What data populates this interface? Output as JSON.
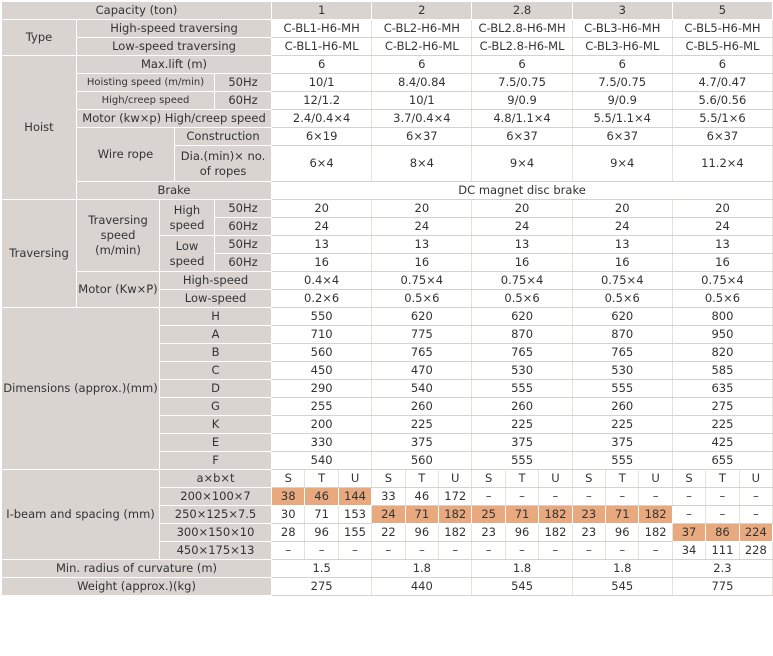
{
  "header": {
    "label": "Capacity (ton)",
    "caps": [
      "1",
      "2",
      "2.8",
      "3",
      "5"
    ]
  },
  "type": {
    "label": "Type",
    "hs_label": "High-speed traversing",
    "ls_label": "Low-speed traversing",
    "hs": [
      "C-BL1-H6-MH",
      "C-BL2-H6-MH",
      "C-BL2.8-H6-MH",
      "C-BL3-H6-MH",
      "C-BL5-H6-MH"
    ],
    "ls": [
      "C-BL1-H6-ML",
      "C-BL2-H6-ML",
      "C-BL2.8-H6-ML",
      "C-BL3-H6-ML",
      "C-BL5-H6-ML"
    ]
  },
  "hoist": {
    "label": "Hoist",
    "maxlift_label": "Max.lift (m)",
    "maxlift": [
      "6",
      "6",
      "6",
      "6",
      "6"
    ],
    "hs_label": "Hoisting speed (m/min)",
    "hc_label": "High/creep speed",
    "hz50": "50Hz",
    "hz60": "60Hz",
    "hs50": [
      "10/1",
      "8.4/0.84",
      "7.5/0.75",
      "7.5/0.75",
      "4.7/0.47"
    ],
    "hs60": [
      "12/1.2",
      "10/1",
      "9/0.9",
      "9/0.9",
      "5.6/0.56"
    ],
    "motor_label": "Motor (kw×p) High/creep speed",
    "motor": [
      "2.4/0.4×4",
      "3.7/0.4×4",
      "4.8/1.1×4",
      "5.5/1.1×4",
      "5.5/1×6"
    ],
    "wire_label": "Wire rope",
    "construction_label": "Construction",
    "construction": [
      "6×19",
      "6×37",
      "6×37",
      "6×37",
      "6×37"
    ],
    "dia_label": "Dia.(min)× no. of ropes",
    "dia": [
      "6×4",
      "8×4",
      "9×4",
      "9×4",
      "11.2×4"
    ],
    "brake_label": "Brake",
    "brake_value": "DC magnet disc brake"
  },
  "traversing": {
    "label": "Traversing",
    "speed_label": "Traversing speed (m/min)",
    "high_label": "High speed",
    "low_label": "Low speed",
    "hz50": "50Hz",
    "hz60": "60Hz",
    "high50": [
      "20",
      "20",
      "20",
      "20",
      "20"
    ],
    "high60": [
      "24",
      "24",
      "24",
      "24",
      "24"
    ],
    "low50": [
      "13",
      "13",
      "13",
      "13",
      "13"
    ],
    "low60": [
      "16",
      "16",
      "16",
      "16",
      "16"
    ],
    "motor_label": "Motor (Kw×P)",
    "mhs_label": "High-speed",
    "mls_label": "Low-speed",
    "mhs": [
      "0.4×4",
      "0.75×4",
      "0.75×4",
      "0.75×4",
      "0.75×4"
    ],
    "mls": [
      "0.2×6",
      "0.5×6",
      "0.5×6",
      "0.5×6",
      "0.5×6"
    ]
  },
  "dimensions": {
    "label": "Dimensions (approx.)(mm)",
    "rows": [
      {
        "key": "H",
        "values": [
          "550",
          "620",
          "620",
          "620",
          "800"
        ]
      },
      {
        "key": "A",
        "values": [
          "710",
          "775",
          "870",
          "870",
          "950"
        ]
      },
      {
        "key": "B",
        "values": [
          "560",
          "765",
          "765",
          "765",
          "820"
        ]
      },
      {
        "key": "C",
        "values": [
          "450",
          "470",
          "530",
          "530",
          "585"
        ]
      },
      {
        "key": "D",
        "values": [
          "290",
          "540",
          "555",
          "555",
          "635"
        ]
      },
      {
        "key": "G",
        "values": [
          "255",
          "260",
          "260",
          "260",
          "275"
        ]
      },
      {
        "key": "K",
        "values": [
          "200",
          "225",
          "225",
          "225",
          "225"
        ]
      },
      {
        "key": "E",
        "values": [
          "330",
          "375",
          "375",
          "375",
          "425"
        ]
      },
      {
        "key": "F",
        "values": [
          "540",
          "560",
          "555",
          "555",
          "655"
        ]
      }
    ]
  },
  "ibeam": {
    "label": "I-beam and spacing (mm)",
    "head": "a×b×t",
    "stu": [
      "S",
      "T",
      "U"
    ],
    "rows": [
      {
        "label": "200×100×7",
        "values": [
          "38",
          "46",
          "144",
          "33",
          "46",
          "172",
          "–",
          "–",
          "–",
          "–",
          "–",
          "–",
          "–",
          "–",
          "–"
        ]
      },
      {
        "label": "250×125×7.5",
        "values": [
          "30",
          "71",
          "153",
          "24",
          "71",
          "182",
          "25",
          "71",
          "182",
          "23",
          "71",
          "182",
          "–",
          "–",
          "–"
        ]
      },
      {
        "label": "300×150×10",
        "values": [
          "28",
          "96",
          "155",
          "22",
          "96",
          "182",
          "23",
          "96",
          "182",
          "23",
          "96",
          "182",
          "37",
          "86",
          "224"
        ]
      },
      {
        "label": "450×175×13",
        "values": [
          "–",
          "–",
          "–",
          "–",
          "–",
          "–",
          "–",
          "–",
          "–",
          "–",
          "–",
          "–",
          "34",
          "111",
          "228"
        ]
      }
    ]
  },
  "min_radius": {
    "label": "Min. radius of curvature (m)",
    "values": [
      "1.5",
      "1.8",
      "1.8",
      "1.8",
      "2.3"
    ]
  },
  "weight": {
    "label": "Weight (approx.)(kg)",
    "values": [
      "275",
      "440",
      "545",
      "545",
      "775"
    ]
  }
}
